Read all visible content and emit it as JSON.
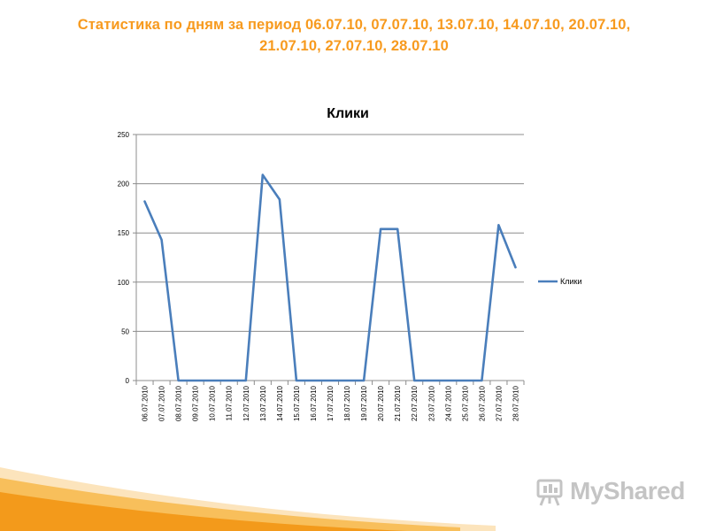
{
  "slide": {
    "title_line1": "Статистика по дням за период 06.07.10, 07.07.10, 13.07.10, 14.07.10, 20.07.10,",
    "title_line2": "21.07.10, 27.07.10, 28.07.10"
  },
  "logo": {
    "text": "MyShared",
    "icon": "presentation-board-icon"
  },
  "colors": {
    "title": "#f79a1e",
    "series": "#4a7ebb",
    "swoosh": "#f5a623"
  },
  "chart_data": {
    "type": "line",
    "title": "Клики",
    "xlabel": "",
    "ylabel": "",
    "ylim": [
      0,
      250
    ],
    "yticks": [
      0,
      50,
      100,
      150,
      200,
      250
    ],
    "grid": true,
    "legend": "right",
    "categories": [
      "06.07.2010",
      "07.07.2010",
      "08.07.2010",
      "09.07.2010",
      "10.07.2010",
      "11.07.2010",
      "12.07.2010",
      "13.07.2010",
      "14.07.2010",
      "15.07.2010",
      "16.07.2010",
      "17.07.2010",
      "18.07.2010",
      "19.07.2010",
      "20.07.2010",
      "21.07.2010",
      "22.07.2010",
      "23.07.2010",
      "24.07.2010",
      "25.07.2010",
      "26.07.2010",
      "27.07.2010",
      "28.07.2010"
    ],
    "series": [
      {
        "name": "Клики",
        "values": [
          182,
          143,
          0,
          0,
          0,
          0,
          0,
          209,
          184,
          0,
          0,
          0,
          0,
          0,
          154,
          154,
          0,
          0,
          0,
          0,
          0,
          158,
          115
        ]
      }
    ]
  }
}
